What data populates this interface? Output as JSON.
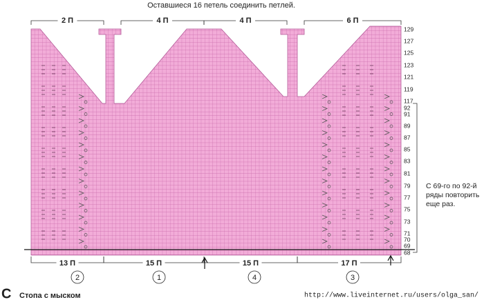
{
  "header": {
    "title": "Оставшиеся 16 петель соединить петлей."
  },
  "top_labels": [
    "2 П",
    "4 П",
    "4 П",
    "6 П"
  ],
  "row_numbers": [
    "129",
    "127",
    "125",
    "123",
    "121",
    "119",
    "117",
    "92",
    "91",
    "89",
    "87",
    "85",
    "83",
    "81",
    "79",
    "77",
    "75",
    "73",
    "71",
    "70",
    "69",
    "68"
  ],
  "bottom_labels": [
    "13 П",
    "15 П",
    "15 П",
    "17 П"
  ],
  "sections": [
    "2",
    "1",
    "4",
    "3"
  ],
  "note": [
    "С 69-го по 92-й",
    "ряды повторить",
    "еще раз."
  ],
  "caption": {
    "letter": "C",
    "text": "Стопа с мыском"
  },
  "watermark": "http://www.liveinternet.ru/users/olga_san/"
}
